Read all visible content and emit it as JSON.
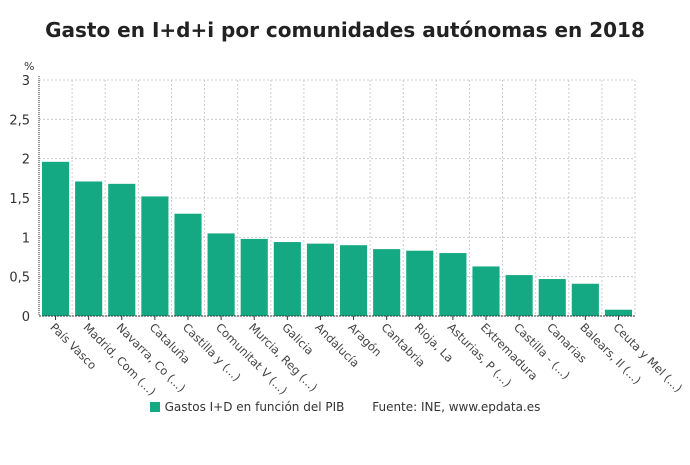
{
  "chart_data": {
    "type": "bar",
    "title": "Gasto en I+d+i por comunidades autónomas en 2018",
    "ylabel": "%",
    "xlabel": "",
    "ylim": [
      0,
      3
    ],
    "yticks": [
      "0",
      "0,5",
      "1",
      "1,5",
      "2",
      "2,5",
      "3"
    ],
    "grid": true,
    "legend_position": "bottom",
    "color": "#14a883",
    "categories": [
      "País Vasco",
      "Madrid, Com (...)",
      "Navarra, Co (...)",
      "Cataluña",
      "Castilla y (...)",
      "Comunitat V (...)",
      "Murcia, Reg (...)",
      "Galicia",
      "Andalucía",
      "Aragón",
      "Cantabria",
      "Rioja, La",
      "Asturias, P (...)",
      "Extremadura",
      "Castilla - (...)",
      "Canarias",
      "Balears, Il (...)",
      "Ceuta y Mel (...)"
    ],
    "series": [
      {
        "name": "Gastos I+D en función del PIB",
        "values": [
          1.96,
          1.71,
          1.68,
          1.52,
          1.3,
          1.05,
          0.98,
          0.94,
          0.92,
          0.9,
          0.85,
          0.83,
          0.8,
          0.63,
          0.52,
          0.47,
          0.41,
          0.08
        ]
      }
    ],
    "source": "Fuente: INE, www.epdata.es"
  }
}
